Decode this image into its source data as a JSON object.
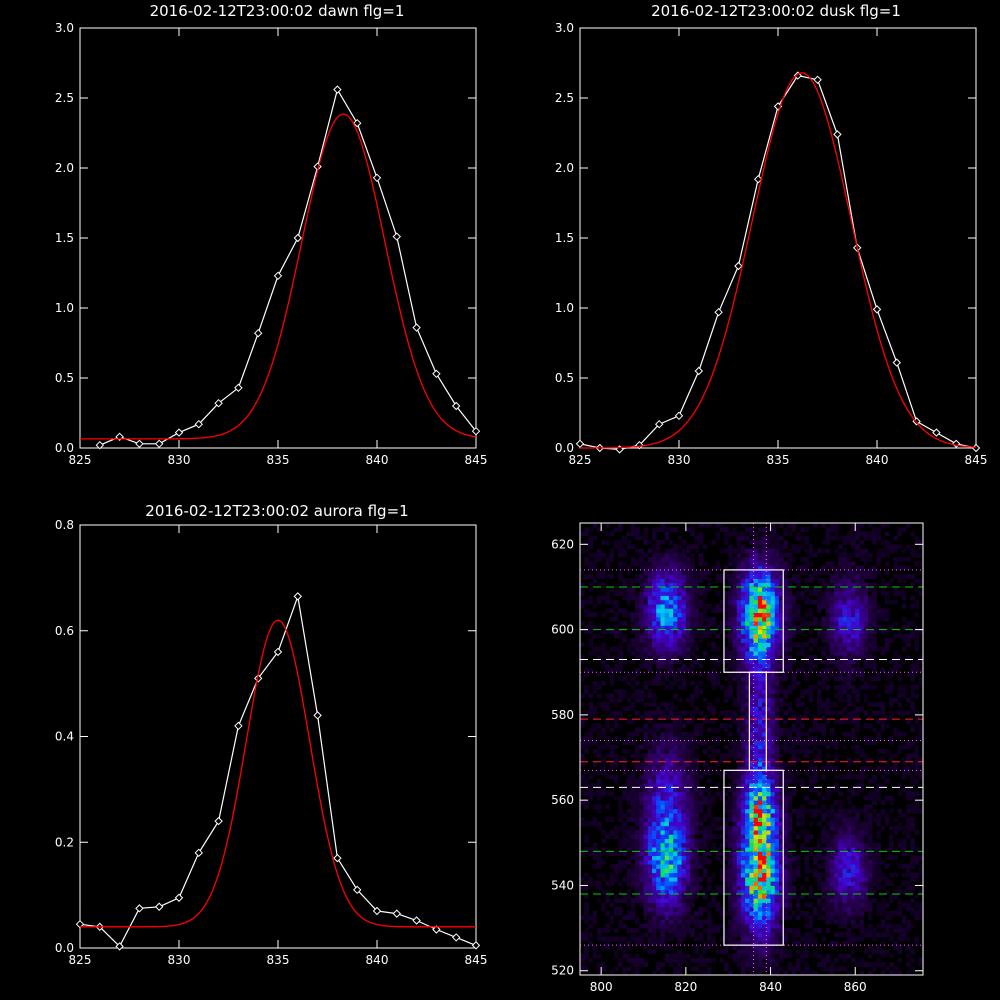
{
  "chart_data": [
    {
      "type": "line",
      "title": "2016-02-12T23:00:02 dawn flg=1",
      "xlim": [
        825,
        845
      ],
      "ylim": [
        0,
        3.0
      ],
      "xticks": [
        825,
        830,
        835,
        840,
        845
      ],
      "yticks": [
        0.0,
        0.5,
        1.0,
        1.5,
        2.0,
        2.5,
        3.0
      ],
      "xtick_labels": [
        "825",
        "830",
        "835",
        "840",
        "845"
      ],
      "ytick_labels": [
        "0.0",
        "0.5",
        "1.0",
        "1.5",
        "2.0",
        "2.5",
        "3.0"
      ],
      "series": [
        {
          "kind": "data",
          "color": "#ffffff",
          "marker": "diamond",
          "x": [
            826,
            827,
            828,
            829,
            830,
            831,
            832,
            833,
            834,
            835,
            836,
            837,
            838,
            839,
            840,
            841,
            842,
            843,
            844,
            845
          ],
          "y": [
            0.02,
            0.08,
            0.03,
            0.03,
            0.11,
            0.17,
            0.32,
            0.43,
            0.82,
            1.23,
            1.5,
            2.01,
            2.56,
            2.32,
            1.93,
            1.51,
            0.86,
            0.53,
            0.3,
            0.12
          ]
        },
        {
          "kind": "fit",
          "color": "#ff0000",
          "amp": 2.32,
          "center": 838.3,
          "sigma": 2.1,
          "offset": 0.065
        }
      ]
    },
    {
      "type": "line",
      "title": "2016-02-12T23:00:02 dusk flg=1",
      "xlim": [
        825,
        845
      ],
      "ylim": [
        0,
        3.0
      ],
      "xticks": [
        825,
        830,
        835,
        840,
        845
      ],
      "yticks": [
        0.0,
        0.5,
        1.0,
        1.5,
        2.0,
        2.5,
        3.0
      ],
      "xtick_labels": [
        "825",
        "830",
        "835",
        "840",
        "845"
      ],
      "ytick_labels": [
        "0.0",
        "0.5",
        "1.0",
        "1.5",
        "2.0",
        "2.5",
        "3.0"
      ],
      "series": [
        {
          "kind": "data",
          "color": "#ffffff",
          "marker": "diamond",
          "x": [
            825,
            826,
            827,
            828,
            829,
            830,
            831,
            832,
            833,
            834,
            835,
            836,
            837,
            838,
            839,
            840,
            841,
            842,
            843,
            844,
            845
          ],
          "y": [
            0.03,
            0.0,
            -0.01,
            0.02,
            0.17,
            0.23,
            0.55,
            0.97,
            1.3,
            1.92,
            2.44,
            2.66,
            2.63,
            2.24,
            1.43,
            0.99,
            0.61,
            0.19,
            0.11,
            0.03,
            0.0
          ]
        },
        {
          "kind": "fit",
          "color": "#ff0000",
          "amp": 2.68,
          "center": 836.2,
          "sigma": 2.5,
          "offset": 0.0
        }
      ]
    },
    {
      "type": "line",
      "title": "2016-02-12T23:00:02 aurora flg=1",
      "xlim": [
        825,
        845
      ],
      "ylim": [
        0,
        0.8
      ],
      "xticks": [
        825,
        830,
        835,
        840,
        845
      ],
      "yticks": [
        0.0,
        0.2,
        0.4,
        0.6,
        0.8
      ],
      "xtick_labels": [
        "825",
        "830",
        "835",
        "840",
        "845"
      ],
      "ytick_labels": [
        "0.0",
        "0.2",
        "0.4",
        "0.6",
        "0.8"
      ],
      "series": [
        {
          "kind": "data",
          "color": "#ffffff",
          "marker": "diamond",
          "x": [
            825,
            826,
            827,
            828,
            829,
            830,
            831,
            832,
            833,
            834,
            835,
            836,
            837,
            838,
            839,
            840,
            841,
            842,
            843,
            844,
            845
          ],
          "y": [
            0.045,
            0.04,
            0.003,
            0.075,
            0.078,
            0.095,
            0.18,
            0.24,
            0.42,
            0.51,
            0.56,
            0.665,
            0.44,
            0.17,
            0.11,
            0.07,
            0.065,
            0.052,
            0.035,
            0.02,
            0.005
          ]
        },
        {
          "kind": "fit",
          "color": "#ff0000",
          "amp": 0.58,
          "center": 835.0,
          "sigma": 1.6,
          "offset": 0.04
        }
      ]
    },
    {
      "type": "heatmap",
      "title": "",
      "xlim": [
        795,
        876
      ],
      "ylim": [
        519,
        625
      ],
      "xticks": [
        800,
        820,
        840,
        860
      ],
      "yticks": [
        520,
        540,
        560,
        580,
        600,
        620
      ],
      "xtick_labels": [
        "800",
        "820",
        "840",
        "860"
      ],
      "ytick_labels": [
        "520",
        "540",
        "560",
        "580",
        "600",
        "620"
      ],
      "blobs": [
        {
          "x": 815,
          "y": 604,
          "sx": 3.2,
          "sy": 6,
          "amp": 0.55
        },
        {
          "x": 815,
          "y": 545,
          "sx": 3.2,
          "sy": 7,
          "amp": 0.62
        },
        {
          "x": 837,
          "y": 603,
          "sx": 3.0,
          "sy": 7,
          "amp": 0.95
        },
        {
          "x": 837,
          "y": 543,
          "sx": 3.0,
          "sy": 9,
          "amp": 0.95
        },
        {
          "x": 837,
          "y": 575,
          "sx": 2.2,
          "sy": 12,
          "amp": 0.3
        },
        {
          "x": 837,
          "y": 558,
          "sx": 2.5,
          "sy": 6,
          "amp": 0.5
        },
        {
          "x": 858,
          "y": 602,
          "sx": 3.0,
          "sy": 6,
          "amp": 0.3
        },
        {
          "x": 858,
          "y": 543,
          "sx": 3.0,
          "sy": 6,
          "amp": 0.3
        },
        {
          "x": 815,
          "y": 560,
          "sx": 3.5,
          "sy": 8,
          "amp": 0.3
        }
      ],
      "boxes": [
        {
          "x0": 829,
          "x1": 843,
          "y0": 590,
          "y1": 614
        },
        {
          "x0": 829,
          "x1": 843,
          "y0": 526,
          "y1": 567
        },
        {
          "x0": 835,
          "x1": 839,
          "y0": 567,
          "y1": 590
        }
      ],
      "hlines": [
        {
          "y": 610,
          "color": "#00cc00",
          "style": "dashed"
        },
        {
          "y": 600,
          "color": "#00cc00",
          "style": "dashed"
        },
        {
          "y": 593,
          "color": "#ffffff",
          "style": "dashed"
        },
        {
          "y": 579,
          "color": "#ff2020",
          "style": "dashed"
        },
        {
          "y": 569,
          "color": "#ff2020",
          "style": "dashed"
        },
        {
          "y": 563,
          "color": "#ffffff",
          "style": "dashed"
        },
        {
          "y": 548,
          "color": "#00cc00",
          "style": "dashed"
        },
        {
          "y": 538,
          "color": "#00cc00",
          "style": "dashed"
        },
        {
          "y": 614,
          "color": "#ff66ff",
          "style": "dotted"
        },
        {
          "y": 590,
          "color": "#ff66ff",
          "style": "dotted"
        },
        {
          "y": 574,
          "color": "#ff66ff",
          "style": "dotted"
        },
        {
          "y": 567,
          "color": "#ff66ff",
          "style": "dotted"
        },
        {
          "y": 526,
          "color": "#ff66ff",
          "style": "dotted"
        }
      ],
      "vlines": [
        {
          "x": 836,
          "color": "#ff66ff",
          "style": "dotted"
        },
        {
          "x": 839,
          "color": "#ff66ff",
          "style": "dotted"
        }
      ]
    }
  ]
}
